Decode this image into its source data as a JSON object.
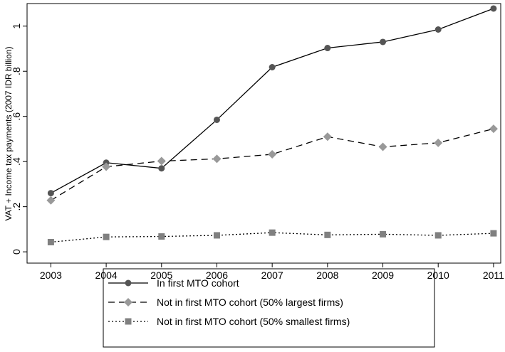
{
  "chart_data": {
    "type": "line",
    "ylabel": "VAT + Income tax payments (2007 IDR billion)",
    "x": [
      2003,
      2004,
      2005,
      2006,
      2007,
      2008,
      2009,
      2010,
      2011
    ],
    "xlim": [
      2002.57,
      2011.13
    ],
    "xticks": [
      2003,
      2004,
      2005,
      2006,
      2007,
      2008,
      2009,
      2010,
      2011
    ],
    "ylim": [
      -0.05,
      1.1
    ],
    "yticks": [
      0,
      {
        "value": 0.2,
        "label": ".2"
      },
      {
        "value": 0.4,
        "label": ".4"
      },
      {
        "value": 0.6,
        "label": ".6"
      },
      {
        "value": 0.8,
        "label": ".8"
      },
      1
    ],
    "legend": "bottom",
    "series": [
      {
        "name": "In first MTO cohort",
        "color": "#555555",
        "line_color": "#000000",
        "dash": "solid",
        "marker": "circle",
        "values": [
          0.26,
          0.395,
          0.37,
          0.585,
          0.818,
          0.903,
          0.93,
          0.985,
          1.078
        ]
      },
      {
        "name": "Not in first MTO cohort (50% largest firms)",
        "color": "#999999",
        "line_color": "#000000",
        "dash": "dashed",
        "marker": "diamond",
        "values": [
          0.228,
          0.377,
          0.402,
          0.412,
          0.432,
          0.51,
          0.465,
          0.483,
          0.545
        ]
      },
      {
        "name": "Not in first MTO cohort (50% smallest firms)",
        "color": "#808080",
        "line_color": "#000000",
        "dash": "dotted",
        "marker": "square",
        "values": [
          0.043,
          0.066,
          0.068,
          0.073,
          0.085,
          0.075,
          0.078,
          0.073,
          0.082
        ]
      }
    ]
  }
}
